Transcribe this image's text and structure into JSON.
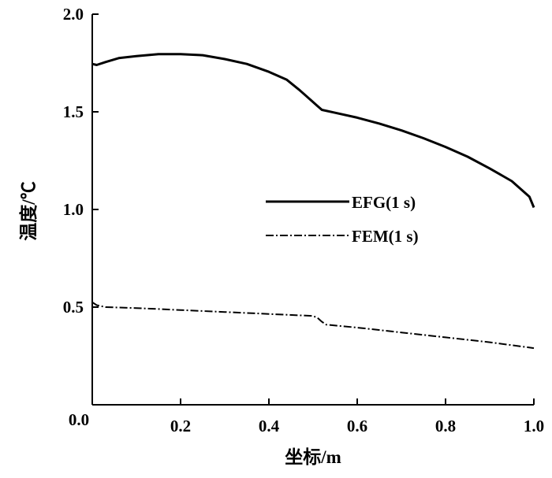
{
  "chart_data": {
    "type": "line",
    "xlabel": "坐标/m",
    "ylabel": "温度/℃",
    "xlim": [
      0.0,
      1.0
    ],
    "ylim": [
      0.0,
      2.0
    ],
    "x_ticks": [
      "0.2",
      "0.4",
      "0.6",
      "0.8",
      "1.0"
    ],
    "y_ticks": [
      "0.0",
      "0.5",
      "1.0",
      "1.5",
      "2.0"
    ],
    "grid": false,
    "legend_position": "center-right",
    "series": [
      {
        "name": "EFG(1 s)",
        "style": "solid",
        "points": [
          [
            0.0,
            1.745
          ],
          [
            0.01,
            1.74
          ],
          [
            0.03,
            1.755
          ],
          [
            0.06,
            1.775
          ],
          [
            0.1,
            1.785
          ],
          [
            0.15,
            1.795
          ],
          [
            0.2,
            1.795
          ],
          [
            0.25,
            1.79
          ],
          [
            0.3,
            1.77
          ],
          [
            0.35,
            1.745
          ],
          [
            0.4,
            1.705
          ],
          [
            0.44,
            1.665
          ],
          [
            0.47,
            1.61
          ],
          [
            0.5,
            1.55
          ],
          [
            0.51,
            1.53
          ],
          [
            0.52,
            1.51
          ],
          [
            0.55,
            1.495
          ],
          [
            0.6,
            1.47
          ],
          [
            0.65,
            1.44
          ],
          [
            0.7,
            1.405
          ],
          [
            0.75,
            1.365
          ],
          [
            0.8,
            1.32
          ],
          [
            0.85,
            1.27
          ],
          [
            0.9,
            1.21
          ],
          [
            0.95,
            1.145
          ],
          [
            0.99,
            1.065
          ],
          [
            1.0,
            1.01
          ]
        ]
      },
      {
        "name": "FEM(1 s)",
        "style": "dashdot",
        "points": [
          [
            0.0,
            0.525
          ],
          [
            0.01,
            0.51
          ],
          [
            0.03,
            0.5
          ],
          [
            0.1,
            0.495
          ],
          [
            0.2,
            0.485
          ],
          [
            0.3,
            0.475
          ],
          [
            0.4,
            0.465
          ],
          [
            0.5,
            0.455
          ],
          [
            0.51,
            0.445
          ],
          [
            0.52,
            0.425
          ],
          [
            0.53,
            0.41
          ],
          [
            0.6,
            0.395
          ],
          [
            0.7,
            0.37
          ],
          [
            0.8,
            0.345
          ],
          [
            0.9,
            0.32
          ],
          [
            1.0,
            0.29
          ]
        ]
      }
    ]
  }
}
